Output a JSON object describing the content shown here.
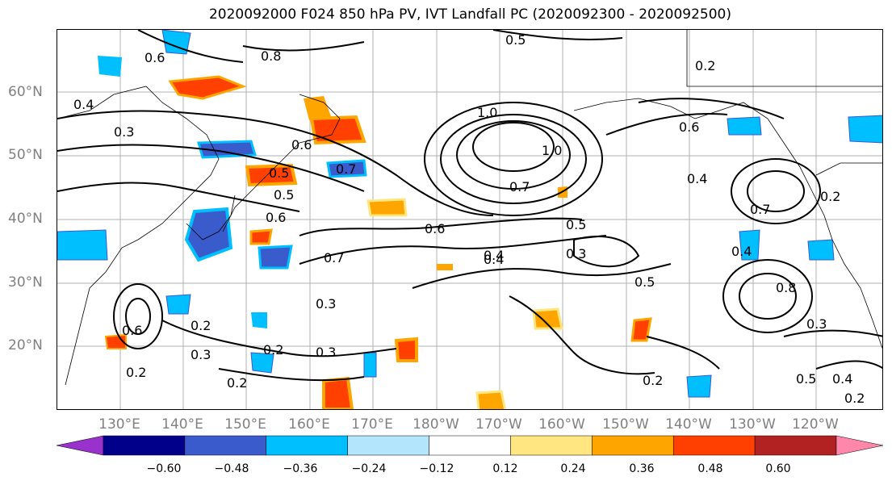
{
  "title": "2020092000 F024 850 hPa PV, IVT Landfall PC (2020092300 - 2020092500)",
  "lat_labels": [
    "60°N",
    "50°N",
    "40°N",
    "30°N",
    "20°N"
  ],
  "lon_labels": [
    "130°E",
    "140°E",
    "150°E",
    "160°E",
    "170°E",
    "180°W",
    "170°W",
    "160°W",
    "150°W",
    "140°W",
    "130°W",
    "120°W"
  ],
  "colorbar": {
    "ticks": [
      "−0.60",
      "−0.48",
      "−0.36",
      "−0.24",
      "−0.12",
      "0.12",
      "0.24",
      "0.36",
      "0.48",
      "0.60"
    ],
    "colors": [
      "#9932cc",
      "#00008b",
      "#3a5bcc",
      "#00bfff",
      "#b3e5fc",
      "#ffffff",
      "#ffe680",
      "#ffa500",
      "#ff4000",
      "#b22222",
      "#ff88aa"
    ]
  },
  "contour_labels": [
    "0.6",
    "0.8",
    "0.5",
    "1.0",
    "0.2",
    "0.4",
    "0.3",
    "0.7",
    "0.6",
    "0.5",
    "0.5",
    "0.6",
    "0.7",
    "0.4",
    "0.6",
    "1.0",
    "0.7",
    "0.6",
    "0.5",
    "0.4",
    "0.5",
    "0.3",
    "0.2",
    "0.3",
    "0.2",
    "0.3",
    "0.2",
    "0.3",
    "0.2",
    "0.4",
    "0.7",
    "0.4",
    "0.8",
    "0.3",
    "0.5",
    "0.2",
    "0.2",
    "0.4",
    "0.6",
    "0.2"
  ]
}
